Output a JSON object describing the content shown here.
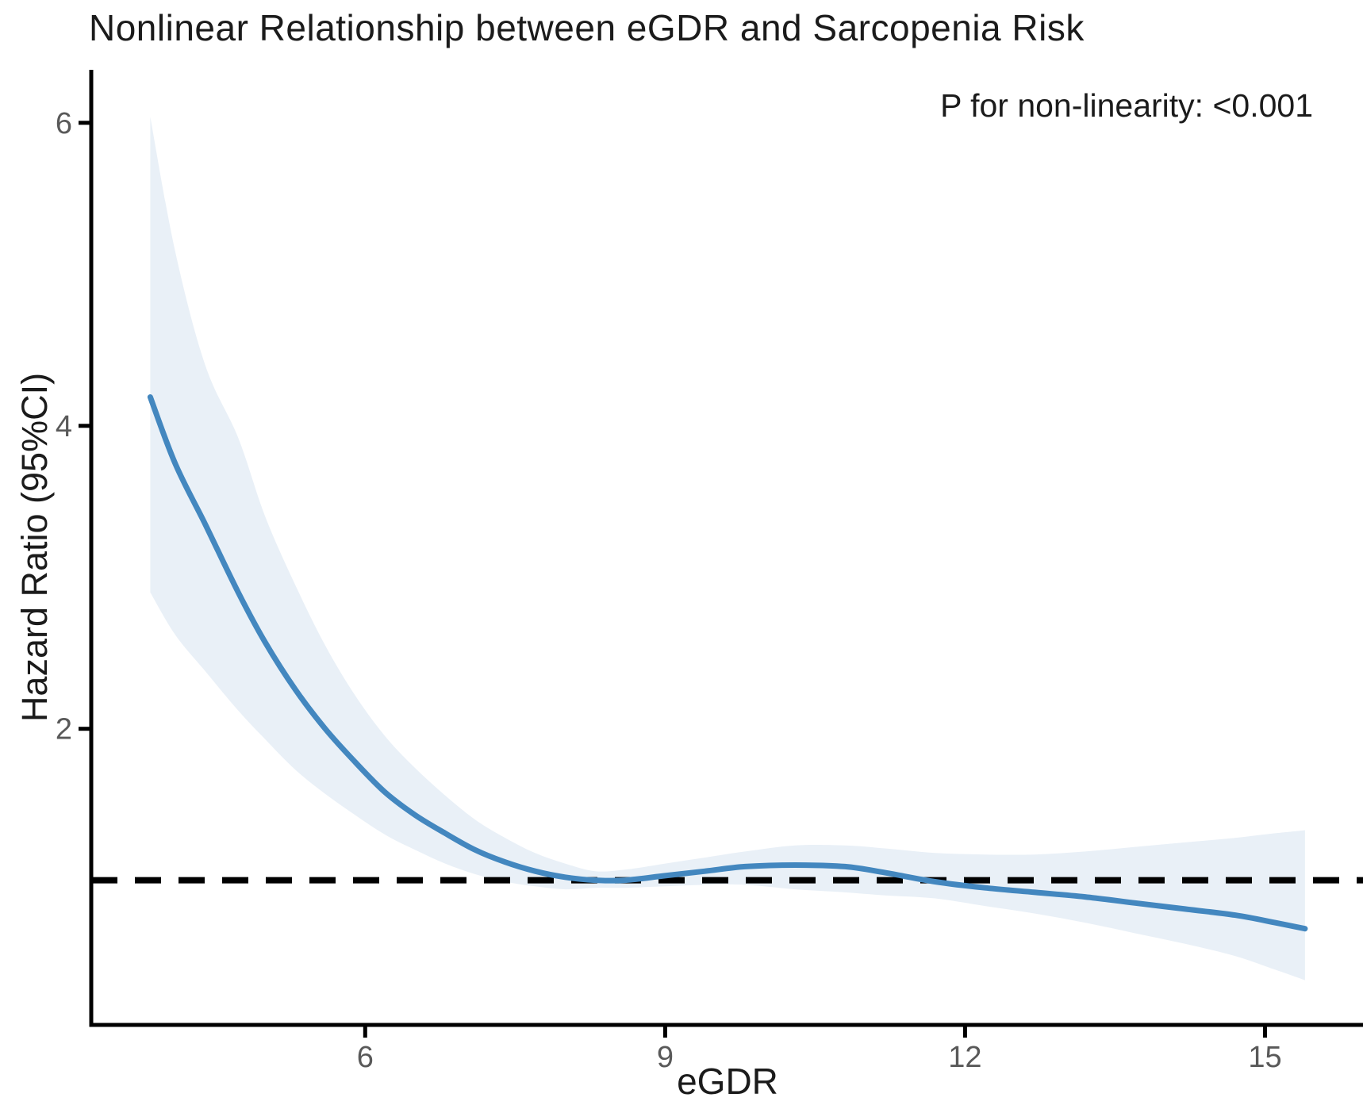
{
  "page": {
    "background": "#ffffff"
  },
  "chart_data": {
    "type": "line",
    "title": "Nonlinear Relationship between eGDR and Sarcopenia Risk",
    "annotation": "P for non-linearity: <0.001",
    "xlabel": "eGDR",
    "ylabel": "Hazard Ratio (95%CI)",
    "xlim": [
      3.26,
      15.98
    ],
    "ylim": [
      0.045,
      6.35
    ],
    "x_ticks": [
      6,
      9,
      12,
      15
    ],
    "y_ticks": [
      6,
      4,
      2
    ],
    "grid": false,
    "legend": "none",
    "reference_line": {
      "y": 1.0,
      "style": "dashed",
      "color": "#000000"
    },
    "x": [
      3.85,
      4.1,
      4.4,
      4.73,
      5.0,
      5.3,
      5.6,
      5.9,
      6.2,
      6.5,
      6.8,
      7.1,
      7.4,
      7.7,
      8.0,
      8.3,
      8.6,
      9.0,
      9.4,
      9.8,
      10.3,
      10.8,
      11.2,
      11.7,
      12.2,
      12.7,
      13.2,
      13.7,
      14.2,
      14.7,
      15.1,
      15.4
    ],
    "series": [
      {
        "name": "Hazard Ratio spline",
        "type": "line",
        "color": "#4387bf",
        "values": [
          4.19,
          3.75,
          3.35,
          2.9,
          2.57,
          2.26,
          2.0,
          1.78,
          1.58,
          1.43,
          1.31,
          1.2,
          1.12,
          1.06,
          1.02,
          1.0,
          1.0,
          1.03,
          1.06,
          1.09,
          1.1,
          1.09,
          1.05,
          0.99,
          0.95,
          0.92,
          0.89,
          0.85,
          0.81,
          0.77,
          0.72,
          0.68
        ]
      },
      {
        "name": "95% CI upper bound",
        "type": "band-upper",
        "color": "#e9f0f7",
        "values": [
          6.04,
          5.15,
          4.4,
          3.92,
          3.4,
          2.95,
          2.55,
          2.22,
          1.95,
          1.74,
          1.56,
          1.4,
          1.28,
          1.18,
          1.11,
          1.06,
          1.07,
          1.11,
          1.15,
          1.19,
          1.23,
          1.23,
          1.21,
          1.18,
          1.17,
          1.17,
          1.19,
          1.22,
          1.25,
          1.28,
          1.31,
          1.33
        ]
      },
      {
        "name": "95% CI lower bound",
        "type": "band-lower",
        "color": "#e9f0f7",
        "values": [
          2.9,
          2.62,
          2.38,
          2.12,
          1.93,
          1.73,
          1.57,
          1.43,
          1.3,
          1.2,
          1.11,
          1.04,
          0.99,
          0.96,
          0.94,
          0.95,
          0.95,
          0.96,
          0.97,
          0.97,
          0.94,
          0.92,
          0.9,
          0.88,
          0.83,
          0.78,
          0.72,
          0.65,
          0.58,
          0.5,
          0.41,
          0.34
        ]
      }
    ],
    "colors": {
      "line": "#4387bf",
      "band": "#e9f0f7",
      "axis": "#000000",
      "tick_label": "#595959",
      "text": "#1b1b1b"
    }
  }
}
